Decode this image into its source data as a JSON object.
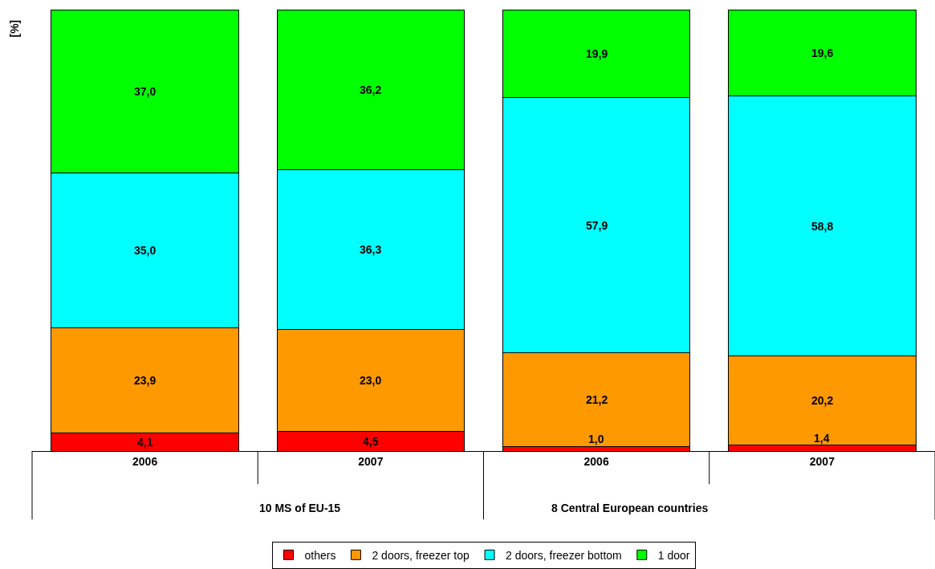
{
  "chart_data": {
    "type": "bar",
    "stacked": true,
    "legend": "bottom",
    "ylabel": "[%]",
    "categories": [
      "2006",
      "2007",
      "2006",
      "2007"
    ],
    "annotations": [
      "10 MS of EU-15",
      "8 Central European countries"
    ],
    "series": [
      {
        "name": "others",
        "color": "#ff0000",
        "values": [
          4.1,
          4.5,
          1.0,
          1.4
        ],
        "value_labels": [
          "4,1",
          "4,5",
          "1,0",
          "1,4"
        ]
      },
      {
        "name": "2 doors, freezer top",
        "color": "#ff9900",
        "values": [
          23.9,
          23.0,
          21.2,
          20.2
        ],
        "value_labels": [
          "23,9",
          "23,0",
          "21,2",
          "20,2"
        ]
      },
      {
        "name": "2 doors, freezer bottom",
        "color": "#00ffff",
        "values": [
          35.0,
          36.3,
          57.9,
          58.8
        ],
        "value_labels": [
          "35,0",
          "36,3",
          "57,9",
          "58,8"
        ]
      },
      {
        "name": "1 door",
        "color": "#00ff00",
        "values": [
          37.0,
          36.2,
          19.9,
          19.6
        ],
        "value_labels": [
          "37,0",
          "36,2",
          "19,9",
          "19,6"
        ]
      }
    ]
  }
}
